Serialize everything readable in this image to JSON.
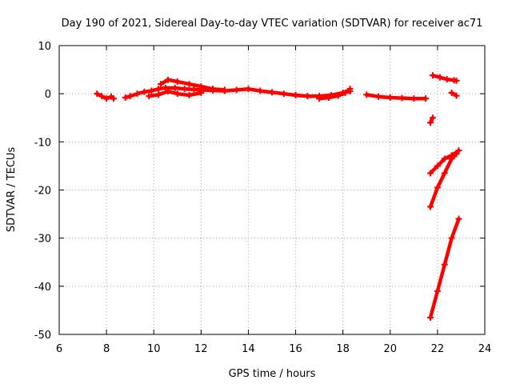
{
  "chart_data": {
    "type": "scatter",
    "title": "Day 190 of 2021, Sidereal Day-to-day VTEC variation (SDTVAR) for receiver ac71",
    "xlabel": "GPS time / hours",
    "ylabel": "SDTVAR / TECUs",
    "xlim": [
      6,
      24
    ],
    "ylim": [
      -50,
      10
    ],
    "xticks": [
      6,
      8,
      10,
      12,
      14,
      16,
      18,
      20,
      22,
      24
    ],
    "yticks": [
      -50,
      -40,
      -30,
      -20,
      -10,
      0,
      10
    ],
    "xtick_labels": [
      "6",
      "8",
      "10",
      "12",
      "14",
      "16",
      "18",
      "20",
      "22",
      "24"
    ],
    "ytick_labels": [
      "-50",
      "-40",
      "-30",
      "-20",
      "-10",
      "0",
      "10"
    ],
    "grid": true,
    "marker_color": "#ff0000",
    "series": [
      {
        "name": "SDTVAR",
        "segments": [
          {
            "x": [
              7.6,
              7.8,
              8.0,
              8.2,
              8.3
            ],
            "y": [
              0.0,
              -0.5,
              -1.0,
              -0.6,
              -1.0
            ]
          },
          {
            "x": [
              8.8,
              9.0,
              9.3,
              9.6,
              9.9,
              10.2,
              10.5,
              10.9,
              11.3,
              11.7,
              12.0,
              12.5,
              13.0,
              13.5,
              14.0,
              14.5,
              15.0,
              15.5,
              16.0,
              16.5,
              17.0,
              17.5,
              18.0,
              18.3
            ],
            "y": [
              -0.8,
              -0.5,
              0.0,
              0.4,
              0.6,
              1.0,
              1.2,
              1.2,
              1.0,
              0.9,
              0.8,
              0.7,
              0.6,
              0.8,
              1.0,
              0.6,
              0.3,
              0.0,
              -0.3,
              -0.5,
              -0.5,
              -0.3,
              0.2,
              0.5
            ]
          },
          {
            "x": [
              10.3,
              10.6,
              11.0,
              11.5,
              12.0,
              12.5,
              13.0
            ],
            "y": [
              2.0,
              2.9,
              2.5,
              2.0,
              1.5,
              1.0,
              0.8
            ]
          },
          {
            "x": [
              9.8,
              10.2,
              10.6,
              11.0,
              11.5,
              12.0
            ],
            "y": [
              -0.5,
              -0.2,
              0.5,
              0.0,
              -0.3,
              0.2
            ]
          },
          {
            "x": [
              17.0,
              17.4,
              17.8,
              18.1,
              18.3
            ],
            "y": [
              -1.0,
              -0.8,
              -0.4,
              0.2,
              1.0
            ]
          },
          {
            "x": [
              19.0,
              19.5,
              20.0,
              20.5,
              21.0,
              21.5
            ],
            "y": [
              -0.2,
              -0.6,
              -0.8,
              -0.9,
              -1.0,
              -1.0
            ]
          },
          {
            "x": [
              21.8,
              22.1,
              22.4,
              22.7,
              22.8
            ],
            "y": [
              3.8,
              3.4,
              3.0,
              2.8,
              2.7
            ]
          },
          {
            "x": [
              22.6,
              22.8
            ],
            "y": [
              0.2,
              -0.4
            ]
          },
          {
            "x": [
              21.7,
              21.8
            ],
            "y": [
              -6.0,
              -5.0
            ]
          },
          {
            "x": [
              21.7,
              22.0,
              22.3,
              22.6,
              22.9
            ],
            "y": [
              -16.5,
              -15.0,
              -13.5,
              -12.8,
              -11.8
            ]
          },
          {
            "x": [
              21.7,
              22.0,
              22.3,
              22.6,
              22.8
            ],
            "y": [
              -23.5,
              -19.5,
              -16.5,
              -13.5,
              -12.5
            ]
          },
          {
            "x": [
              21.7,
              22.0,
              22.3,
              22.6,
              22.9
            ],
            "y": [
              -46.5,
              -41.0,
              -35.5,
              -30.0,
              -26.0
            ]
          }
        ]
      }
    ]
  }
}
